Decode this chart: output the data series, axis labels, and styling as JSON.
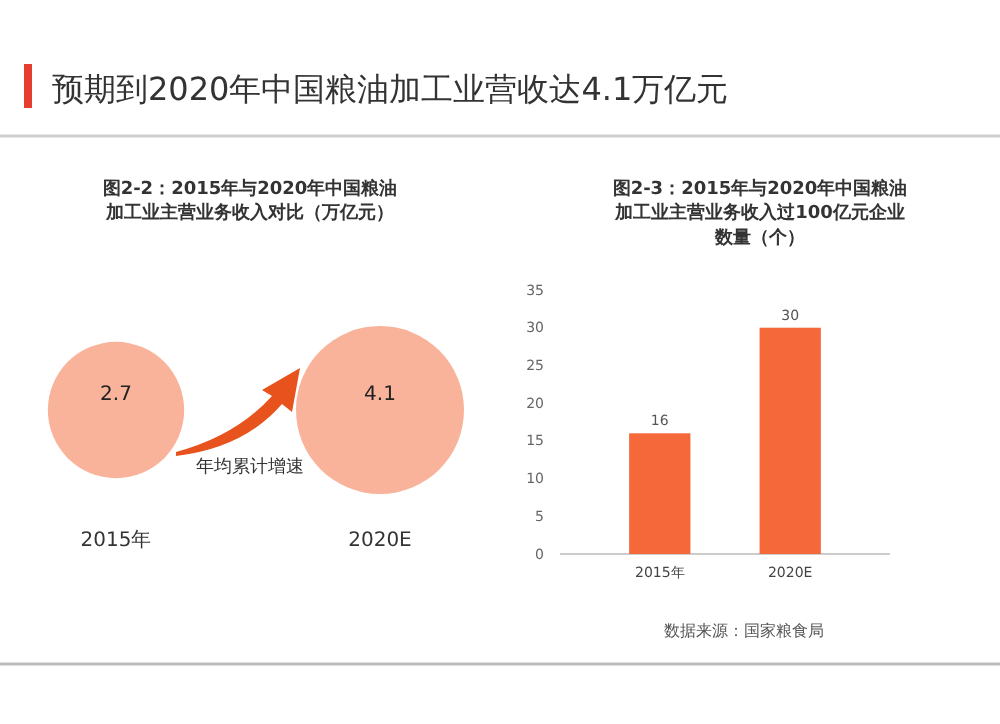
{
  "chart_data": [
    {
      "type": "other",
      "title": "预期到2020年中国粮油加工业营收达4.1万亿元",
      "subtitle": "图2-2：2015年与2020年中国粮油加工业主营业务收入对比（万亿元）",
      "categories": [
        "2015年",
        "2020E"
      ],
      "values": [
        2.7,
        4.1
      ],
      "color": "#f9b39b",
      "data_labels": true,
      "annotations": [
        "年均累计增速"
      ]
    },
    {
      "type": "bar",
      "title": "图2-3：2015年与2020年中国粮油加工业主营业务收入过100亿元企业数量（个）",
      "categories": [
        "2015年",
        "2020E"
      ],
      "values": [
        16,
        30
      ],
      "color": "#f4683a",
      "ylim": [
        0,
        35
      ],
      "yticks": [
        0,
        5,
        10,
        15,
        20,
        25,
        30,
        35
      ],
      "grid": false,
      "data_labels": true,
      "annotations": [
        "数据来源：国家粮食局"
      ]
    }
  ]
}
